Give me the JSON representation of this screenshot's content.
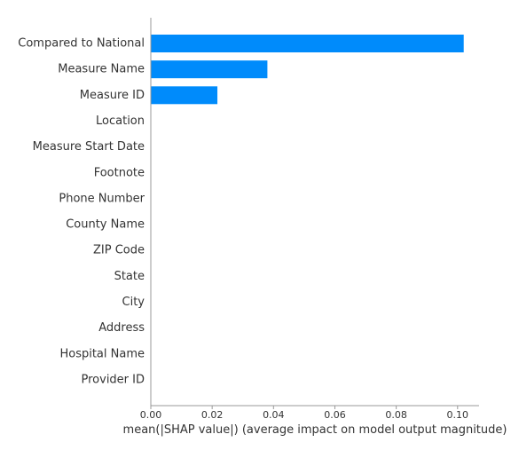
{
  "chart_data": {
    "type": "bar",
    "orientation": "horizontal",
    "categories": [
      "Compared to National",
      "Measure Name",
      "Measure ID",
      "Location",
      "Measure Start Date",
      "Footnote",
      "Phone Number",
      "County Name",
      "ZIP Code",
      "State",
      "City",
      "Address",
      "Hospital Name",
      "Provider ID"
    ],
    "values": [
      0.102,
      0.038,
      0.0217,
      0,
      0,
      0,
      0,
      0,
      0,
      0,
      0,
      0,
      0,
      0
    ],
    "xlabel": "mean(|SHAP value|) (average impact on model output magnitude)",
    "ylabel": "",
    "xlim": [
      0,
      0.107
    ],
    "xticks": [
      0,
      0.02,
      0.04,
      0.06,
      0.08,
      0.1
    ],
    "xtick_labels": [
      "0.00",
      "0.02",
      "0.04",
      "0.06",
      "0.08",
      "0.10"
    ],
    "grid": false,
    "bar_color": "#008bfb"
  }
}
